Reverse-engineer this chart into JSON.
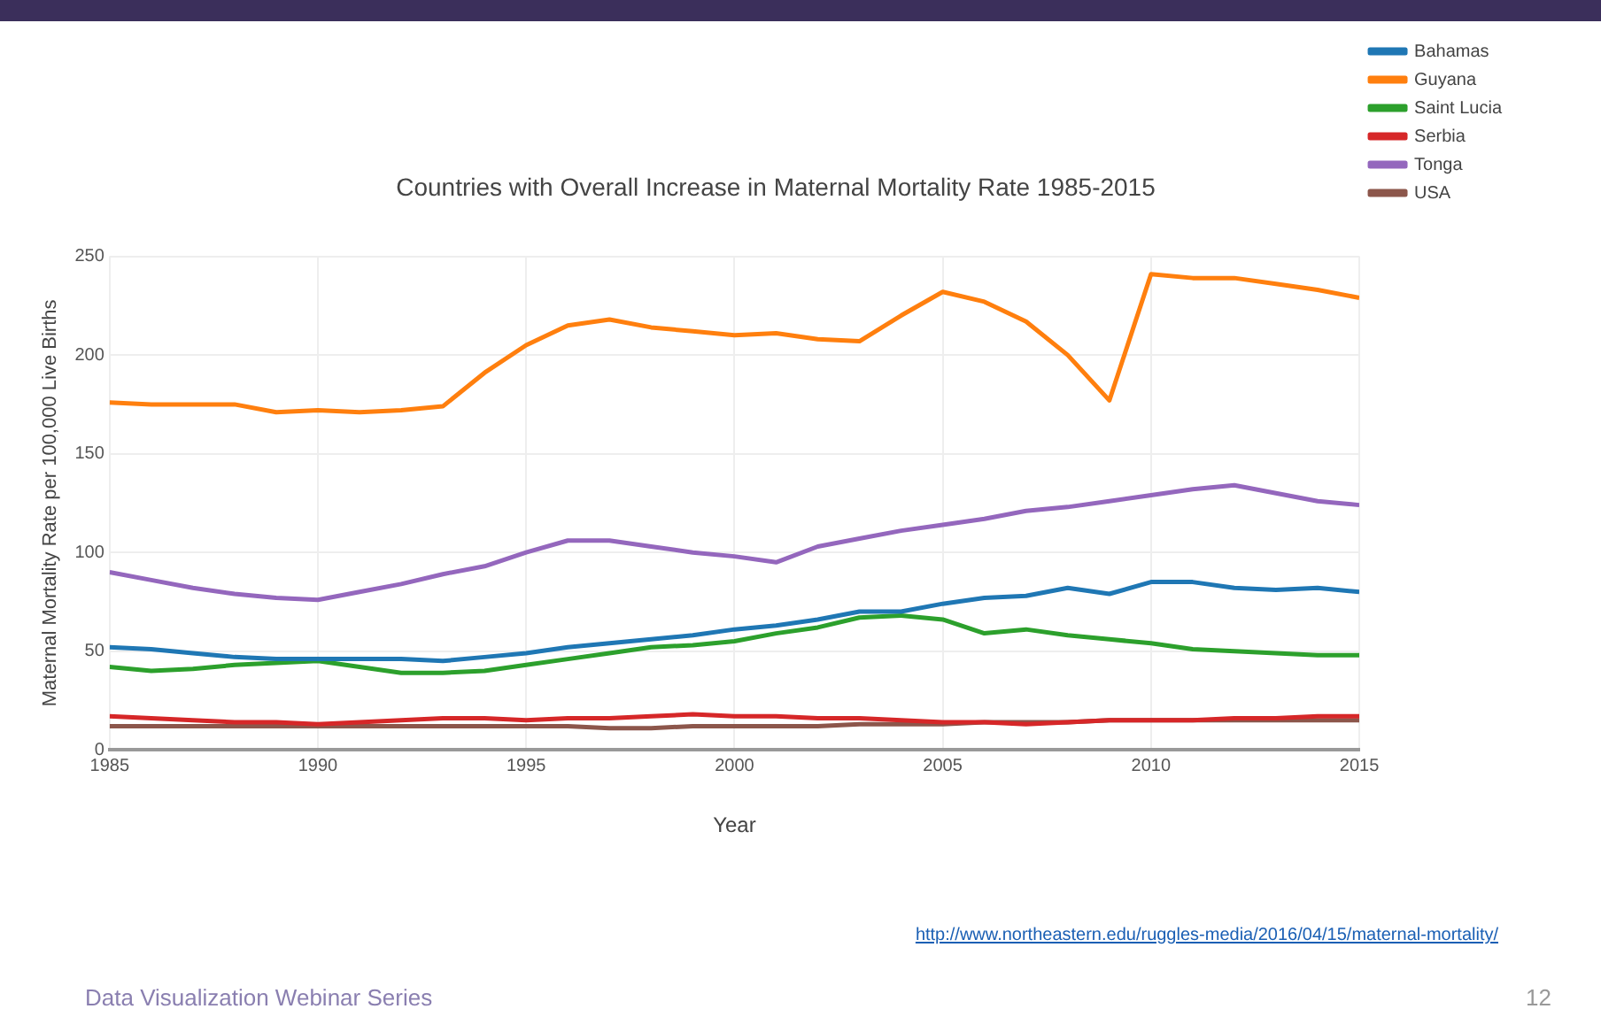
{
  "chart_data": {
    "type": "line",
    "title": "Countries with Overall Increase in Maternal Mortality Rate 1985-2015",
    "xlabel": "Year",
    "ylabel": "Maternal Mortality Rate per 100,000 Live Births",
    "x": [
      1985,
      1986,
      1987,
      1988,
      1989,
      1990,
      1991,
      1992,
      1993,
      1994,
      1995,
      1996,
      1997,
      1998,
      1999,
      2000,
      2001,
      2002,
      2003,
      2004,
      2005,
      2006,
      2007,
      2008,
      2009,
      2010,
      2011,
      2012,
      2013,
      2014,
      2015
    ],
    "series": [
      {
        "name": "Bahamas",
        "color": "#1f77b4",
        "values": [
          52,
          51,
          49,
          47,
          46,
          46,
          46,
          46,
          45,
          47,
          49,
          52,
          54,
          56,
          58,
          61,
          63,
          66,
          70,
          70,
          74,
          77,
          78,
          82,
          79,
          85,
          85,
          82,
          81,
          82,
          80
        ]
      },
      {
        "name": "Guyana",
        "color": "#ff7f0e",
        "values": [
          176,
          175,
          175,
          175,
          171,
          172,
          171,
          172,
          174,
          191,
          205,
          215,
          218,
          214,
          212,
          210,
          211,
          208,
          207,
          220,
          232,
          227,
          217,
          200,
          177,
          241,
          239,
          239,
          236,
          233,
          229
        ]
      },
      {
        "name": "Saint Lucia",
        "color": "#2ca02c",
        "values": [
          42,
          40,
          41,
          43,
          44,
          45,
          42,
          39,
          39,
          40,
          43,
          46,
          49,
          52,
          53,
          55,
          59,
          62,
          67,
          68,
          66,
          59,
          61,
          58,
          56,
          54,
          51,
          50,
          49,
          48,
          48
        ]
      },
      {
        "name": "Serbia",
        "color": "#d62728",
        "values": [
          17,
          16,
          15,
          14,
          14,
          13,
          14,
          15,
          16,
          16,
          15,
          16,
          16,
          17,
          18,
          17,
          17,
          16,
          16,
          15,
          14,
          14,
          13,
          14,
          15,
          15,
          15,
          16,
          16,
          17,
          17
        ]
      },
      {
        "name": "Tonga",
        "color": "#9467bd",
        "values": [
          90,
          86,
          82,
          79,
          77,
          76,
          80,
          84,
          89,
          93,
          100,
          106,
          106,
          103,
          100,
          98,
          95,
          103,
          107,
          111,
          114,
          117,
          121,
          123,
          126,
          129,
          132,
          134,
          130,
          126,
          124
        ]
      },
      {
        "name": "USA",
        "color": "#8c564b",
        "values": [
          12,
          12,
          12,
          12,
          12,
          12,
          12,
          12,
          12,
          12,
          12,
          12,
          11,
          11,
          12,
          12,
          12,
          12,
          13,
          13,
          13,
          14,
          14,
          14,
          15,
          15,
          15,
          15,
          15,
          15,
          15
        ]
      }
    ],
    "xlim": [
      1985,
      2015
    ],
    "xticks": [
      1985,
      1990,
      1995,
      2000,
      2005,
      2010,
      2015
    ],
    "ylim": [
      0,
      250
    ],
    "yticks": [
      0,
      50,
      100,
      150,
      200,
      250
    ],
    "grid": true,
    "legend": "top right",
    "marker": "none",
    "line_style": "solid",
    "annotations": [
      "http://www.northeastern.edu/ruggles-media/2016/04/15/maternal-mortality/",
      "Data Visualization Webinar Series",
      "12"
    ]
  }
}
